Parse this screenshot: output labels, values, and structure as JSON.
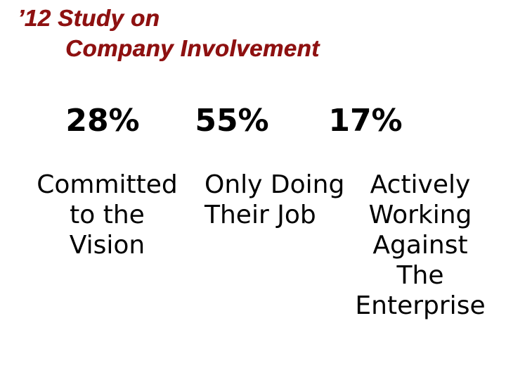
{
  "slide": {
    "title": {
      "line1": "’12 Study on",
      "line2": "Company Involvement",
      "color": "#8e1111"
    },
    "columns": [
      {
        "percent": "28%",
        "label": "Committed\nto the\nVision"
      },
      {
        "percent": "55%",
        "label": "Only Doing\nTheir Job"
      },
      {
        "percent": "17%",
        "label": "Actively\nWorking\nAgainst\nThe\nEnterprise"
      }
    ],
    "text_color": "#000000",
    "background_color": "#ffffff"
  },
  "chart_data": {
    "type": "table",
    "title": "’12 Study on Company Involvement",
    "categories": [
      "Committed to the Vision",
      "Only Doing Their Job",
      "Actively Working Against The Enterprise"
    ],
    "values": [
      28,
      55,
      17
    ],
    "unit": "%"
  }
}
